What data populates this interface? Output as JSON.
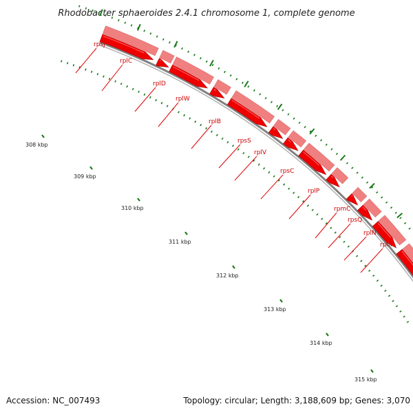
{
  "title": "Rhodobacter sphaeroides 2.4.1 chromosome 1, complete genome",
  "footer": {
    "accession": "Accession: NC_007493",
    "summary": "Topology: circular; Length: 3,188,609 bp; Genes: 3,070"
  },
  "colors": {
    "gene_light": "#f08080",
    "gene_dark": "#ee0000",
    "label": "#cc0000",
    "backbone": "#808080",
    "ticks": "#1a7a1a"
  },
  "kbp_labels": [
    "308 kbp",
    "309 kbp",
    "310 kbp",
    "311 kbp",
    "312 kbp",
    "313 kbp",
    "314 kbp",
    "315 kbp"
  ],
  "genes": [
    "rpsJ",
    "rplC",
    "rplD",
    "rplW",
    "rplB",
    "rpsS",
    "rplV",
    "rpsC",
    "rplP",
    "rpmC",
    "rpsQ",
    "rplN",
    "rplX"
  ]
}
